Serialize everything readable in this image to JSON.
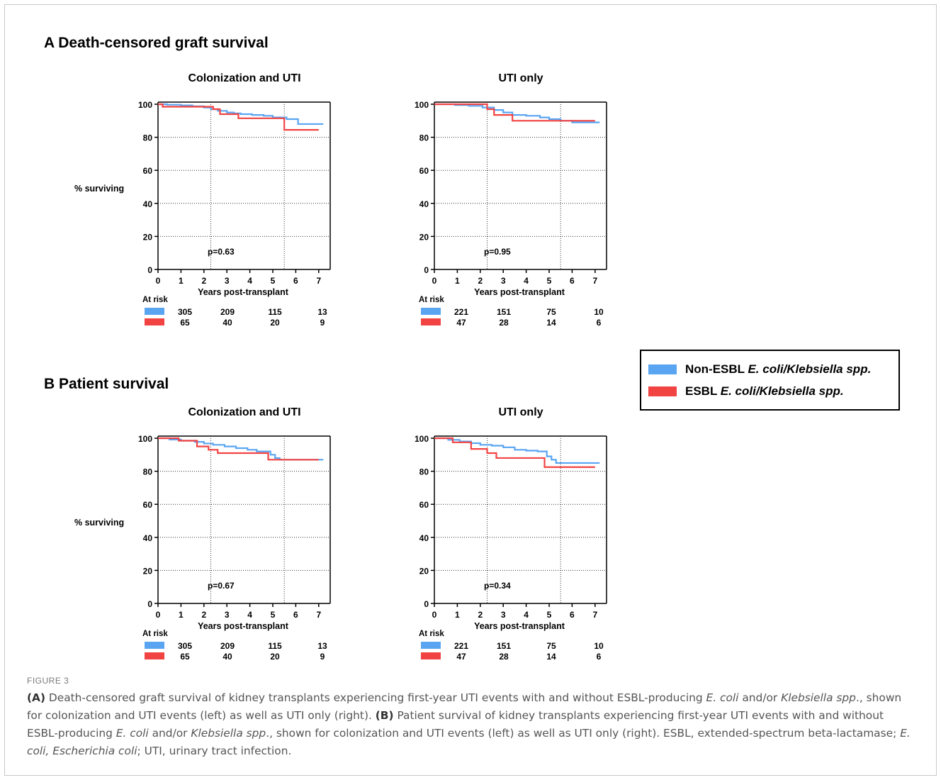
{
  "sections": [
    {
      "title": "A Death-censored graft survival"
    },
    {
      "title": "B Patient survival"
    }
  ],
  "legend": {
    "items": [
      {
        "prefix": "Non-ESBL ",
        "italic": "E. coli/Klebsiella spp.",
        "color": "#5aa5f2"
      },
      {
        "prefix": "ESBL ",
        "italic": "E. coli/Klebsiella spp.",
        "color": "#f24343"
      }
    ]
  },
  "figure_label": "FIGURE 3",
  "caption": {
    "a_tag": "(A)",
    "a_text_1": " Death-censored graft survival of kidney transplants experiencing first-year UTI events with and without ESBL-producing ",
    "a_ecoli": "E. coli",
    "a_text_2": " and/or ",
    "a_kleb": "Klebsiella spp",
    "a_text_3": "., shown for colonization and UTI events (left) as well as UTI only (right). ",
    "b_tag": "(B)",
    "b_text_1": " Patient survival of kidney transplants experiencing first-year UTI events with and without ESBL-producing ",
    "b_ecoli": "E. coli",
    "b_text_2": " and/or ",
    "b_kleb": "Klebsiella spp",
    "b_text_3": "., shown for colonization and UTI events (left) as well as UTI only (right). ESBL, extended-spectrum beta-lactamase; ",
    "abbr_ecoli": "E. coli, Escherichia coli",
    "b_text_4": "; UTI, urinary tract infection."
  },
  "chart_data": [
    {
      "type": "line",
      "title": "Colonization and  UTI",
      "xlabel": "Years post-transplant",
      "ylabel": "% surviving",
      "xlim": [
        0,
        7.5
      ],
      "ylim": [
        0,
        100
      ],
      "xticks": [
        0,
        1,
        2,
        3,
        4,
        5,
        6,
        7
      ],
      "yticks": [
        0,
        20,
        40,
        60,
        80,
        100
      ],
      "grid": "dotted at 20, 40, 60, 80 and x = 2.3, 5.5",
      "annotation": "p=0.63",
      "at_risk_label": "At risk",
      "at_risk_times": [
        1,
        3,
        5,
        7
      ],
      "series": [
        {
          "color": "#5aa5f2",
          "x": [
            0,
            0.4,
            1.0,
            1.5,
            2.0,
            2.3,
            2.6,
            3.0,
            3.3,
            3.6,
            4.1,
            4.6,
            5.0,
            5.6,
            6.1,
            7.2
          ],
          "y": [
            100,
            99.7,
            99.3,
            98.8,
            98.0,
            97.0,
            96.0,
            95.0,
            94.5,
            94.0,
            93.5,
            93.0,
            92.0,
            91.0,
            88.0,
            88.0
          ],
          "at_risk": [
            "305",
            "209",
            "115",
            "13"
          ]
        },
        {
          "color": "#f24343",
          "x": [
            0,
            0.2,
            2.4,
            2.7,
            3.5,
            5.5,
            7.0
          ],
          "y": [
            100,
            98.5,
            97.0,
            94.0,
            91.5,
            84.5,
            84.5
          ],
          "at_risk": [
            "65",
            "40",
            "20",
            "9"
          ]
        }
      ]
    },
    {
      "type": "line",
      "title": "UTI only",
      "xlabel": "Years post-transplant",
      "ylabel": "",
      "xlim": [
        0,
        7.5
      ],
      "ylim": [
        0,
        100
      ],
      "xticks": [
        0,
        1,
        2,
        3,
        4,
        5,
        6,
        7
      ],
      "yticks": [
        0,
        20,
        40,
        60,
        80,
        100
      ],
      "grid": "dotted at 20, 40, 60, 80 and x = 2.3, 5.5",
      "annotation": "p=0.95",
      "at_risk_label": "At risk",
      "at_risk_times": [
        1,
        3,
        5,
        7
      ],
      "series": [
        {
          "color": "#5aa5f2",
          "x": [
            0,
            0.9,
            1.5,
            2.1,
            2.6,
            3.0,
            3.4,
            4.0,
            4.6,
            5.0,
            5.5,
            6.0,
            7.2
          ],
          "y": [
            100,
            99.5,
            99.0,
            98.0,
            96.5,
            95.0,
            93.5,
            93.0,
            92.0,
            91.0,
            90.0,
            89.0,
            89.0
          ],
          "at_risk": [
            "221",
            "151",
            "75",
            "10"
          ]
        },
        {
          "color": "#f24343",
          "x": [
            0,
            2.3,
            2.6,
            3.4,
            6.0,
            7.0
          ],
          "y": [
            100,
            97.0,
            93.5,
            90.0,
            90.0,
            90.0
          ],
          "at_risk": [
            "47",
            "28",
            "14",
            "6"
          ]
        }
      ]
    },
    {
      "type": "line",
      "title": "Colonization and  UTI",
      "xlabel": "Years post-transplant",
      "ylabel": "% surviving",
      "xlim": [
        0,
        7.5
      ],
      "ylim": [
        0,
        100
      ],
      "xticks": [
        0,
        1,
        2,
        3,
        4,
        5,
        6,
        7
      ],
      "yticks": [
        0,
        20,
        40,
        60,
        80,
        100
      ],
      "grid": "dotted at 20, 40, 60, 80 and x = 2.3, 5.5",
      "annotation": "p=0.67",
      "at_risk_label": "At risk",
      "at_risk_times": [
        1,
        3,
        5,
        7
      ],
      "series": [
        {
          "color": "#5aa5f2",
          "x": [
            0,
            0.5,
            1.0,
            1.6,
            2.0,
            2.4,
            2.9,
            3.4,
            3.9,
            4.3,
            4.8,
            4.9,
            5.1,
            5.3,
            7.2
          ],
          "y": [
            100,
            99.2,
            98.5,
            97.8,
            96.8,
            96.0,
            95.0,
            94.0,
            93.0,
            92.0,
            92.0,
            90.0,
            88.0,
            87.0,
            87.0
          ],
          "at_risk": [
            "305",
            "209",
            "115",
            "13"
          ]
        },
        {
          "color": "#f24343",
          "x": [
            0,
            0.9,
            1.7,
            2.2,
            2.6,
            3.2,
            4.8,
            5.1,
            7.0
          ],
          "y": [
            100,
            98.5,
            95.0,
            93.0,
            91.0,
            91.0,
            87.0,
            87.0,
            87.0
          ],
          "at_risk": [
            "65",
            "40",
            "20",
            "9"
          ]
        }
      ]
    },
    {
      "type": "line",
      "title": "UTI only",
      "xlabel": "Years post-transplant",
      "ylabel": "",
      "xlim": [
        0,
        7.5
      ],
      "ylim": [
        0,
        100
      ],
      "xticks": [
        0,
        1,
        2,
        3,
        4,
        5,
        6,
        7
      ],
      "yticks": [
        0,
        20,
        40,
        60,
        80,
        100
      ],
      "grid": "dotted at 20, 40, 60, 80 and x = 2.3, 5.5",
      "annotation": "p=0.34",
      "at_risk_label": "At risk",
      "at_risk_times": [
        1,
        3,
        5,
        7
      ],
      "series": [
        {
          "color": "#5aa5f2",
          "x": [
            0,
            0.6,
            1.1,
            1.6,
            2.0,
            2.5,
            3.0,
            3.5,
            4.0,
            4.5,
            4.9,
            5.1,
            5.3,
            7.2
          ],
          "y": [
            100,
            99.0,
            98.0,
            97.0,
            96.0,
            95.5,
            94.5,
            93.0,
            92.5,
            92.0,
            89.0,
            87.0,
            85.0,
            85.0
          ],
          "at_risk": [
            "221",
            "151",
            "75",
            "10"
          ]
        },
        {
          "color": "#f24343",
          "x": [
            0,
            0.8,
            1.6,
            2.3,
            2.7,
            4.8,
            7.0
          ],
          "y": [
            100,
            97.5,
            93.5,
            91.0,
            88.0,
            82.5,
            82.5
          ],
          "at_risk": [
            "47",
            "28",
            "14",
            "6"
          ]
        }
      ]
    }
  ]
}
